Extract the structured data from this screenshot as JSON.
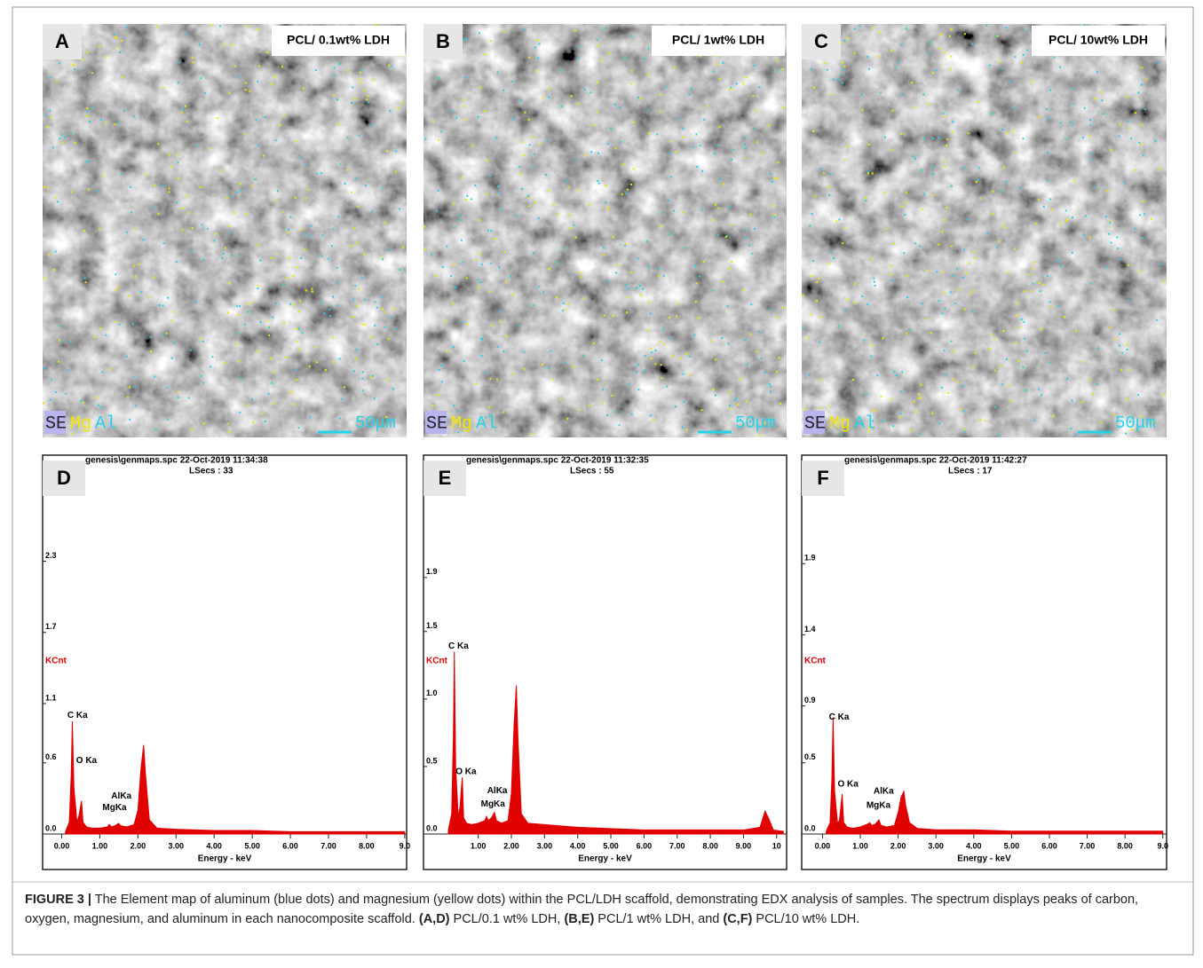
{
  "panels": [
    {
      "letter": "A",
      "label": "PCL/ 0.1wt% LDH",
      "legend": [
        "SE",
        "Mg",
        "Al"
      ],
      "scale": "50μm"
    },
    {
      "letter": "B",
      "label": "PCL/ 1wt% LDH",
      "legend": [
        "SE",
        "Mg",
        "Al"
      ],
      "scale": "50μm"
    },
    {
      "letter": "C",
      "label": "PCL/ 10wt% LDH",
      "legend": [
        "SE",
        "Mg",
        "Al"
      ],
      "scale": "50μm"
    }
  ],
  "chart_data": [
    {
      "type": "area",
      "letter": "D",
      "header": "genesis\\genmaps.spc  22-Oct-2019 11:34:38",
      "subheader": "LSecs : 33",
      "ylabel": "KCnt",
      "xlabel": "Energy - keV",
      "color": "#e00000",
      "xlim": [
        -0.5,
        9.05
      ],
      "ylim": [
        0,
        2.88
      ],
      "xticks": [
        {
          "value": 0,
          "label": "0.00"
        },
        {
          "value": 1,
          "label": "1.00"
        },
        {
          "value": 2,
          "label": "2.00"
        },
        {
          "value": 3,
          "label": "3.00"
        },
        {
          "value": 4,
          "label": "4.00"
        },
        {
          "value": 5,
          "label": "5.00"
        },
        {
          "value": 6,
          "label": "6.00"
        },
        {
          "value": 7,
          "label": "7.00"
        },
        {
          "value": 8,
          "label": "8.00"
        },
        {
          "value": 9,
          "label": "9.0"
        }
      ],
      "yticks": [
        {
          "value": 0,
          "label": "0.0"
        },
        0.6,
        1.1,
        1.7,
        2.3
      ],
      "x": [
        0.1,
        0.2,
        0.25,
        0.28,
        0.32,
        0.4,
        0.45,
        0.52,
        0.56,
        0.65,
        0.8,
        1.0,
        1.2,
        1.25,
        1.3,
        1.4,
        1.49,
        1.55,
        1.7,
        1.9,
        2.0,
        2.08,
        2.15,
        2.2,
        2.3,
        2.5,
        3.0,
        4.0,
        5.0,
        6.0,
        7.0,
        8.0,
        9.0
      ],
      "values": [
        0.02,
        0.1,
        0.5,
        0.95,
        0.4,
        0.1,
        0.15,
        0.28,
        0.1,
        0.06,
        0.05,
        0.05,
        0.06,
        0.08,
        0.06,
        0.07,
        0.09,
        0.07,
        0.06,
        0.08,
        0.2,
        0.55,
        0.75,
        0.5,
        0.12,
        0.05,
        0.04,
        0.03,
        0.03,
        0.02,
        0.02,
        0.02,
        0.02
      ],
      "annotations": [
        {
          "text": "C Ka",
          "x": 0.15,
          "y": 1.0
        },
        {
          "text": "O Ka",
          "x": 0.38,
          "y": 0.62
        },
        {
          "text": "AlKa",
          "x": 1.3,
          "y": 0.32
        },
        {
          "text": "MgKa",
          "x": 1.07,
          "y": 0.22
        }
      ]
    },
    {
      "type": "area",
      "letter": "E",
      "header": "genesis\\genmaps.spc  22-Oct-2019 11:32:35",
      "subheader": "LSecs : 55",
      "ylabel": "KCnt",
      "xlabel": "Energy - keV",
      "color": "#e00000",
      "xlim": [
        -0.65,
        10.3
      ],
      "ylim": [
        0,
        2.53
      ],
      "xticks": [
        {
          "value": 1,
          "label": "1.00"
        },
        {
          "value": 2,
          "label": "2.00"
        },
        {
          "value": 3,
          "label": "3.00"
        },
        {
          "value": 4,
          "label": "4.00"
        },
        {
          "value": 5,
          "label": "5.00"
        },
        {
          "value": 6,
          "label": "6.00"
        },
        {
          "value": 7,
          "label": "7.00"
        },
        {
          "value": 8,
          "label": "8.00"
        },
        {
          "value": 9,
          "label": "9.00"
        },
        10
      ],
      "yticks": [
        {
          "value": 0,
          "label": "0.0"
        },
        0.5,
        {
          "value": 1,
          "label": "1.0"
        },
        1.5,
        1.9
      ],
      "x": [
        0.1,
        0.2,
        0.25,
        0.28,
        0.32,
        0.4,
        0.45,
        0.52,
        0.56,
        0.65,
        0.8,
        1.0,
        1.2,
        1.25,
        1.3,
        1.4,
        1.49,
        1.55,
        1.7,
        1.9,
        2.0,
        2.08,
        2.15,
        2.2,
        2.3,
        2.5,
        3.0,
        4.0,
        5.0,
        6.0,
        7.0,
        8.0,
        9.0,
        9.5,
        9.65,
        9.75,
        9.9,
        10.2
      ],
      "values": [
        0.03,
        0.15,
        0.7,
        1.35,
        0.5,
        0.12,
        0.2,
        0.42,
        0.12,
        0.08,
        0.07,
        0.08,
        0.1,
        0.13,
        0.1,
        0.12,
        0.16,
        0.1,
        0.08,
        0.1,
        0.3,
        0.8,
        1.1,
        0.7,
        0.15,
        0.08,
        0.07,
        0.05,
        0.04,
        0.03,
        0.03,
        0.03,
        0.03,
        0.05,
        0.17,
        0.12,
        0.03,
        0.02
      ],
      "annotations": [
        {
          "text": "C Ka",
          "x": 0.1,
          "y": 1.39
        },
        {
          "text": "O Ka",
          "x": 0.32,
          "y": 0.46
        },
        {
          "text": "AlKa",
          "x": 1.27,
          "y": 0.32
        },
        {
          "text": "MgKa",
          "x": 1.08,
          "y": 0.22
        }
      ]
    },
    {
      "type": "area",
      "letter": "F",
      "header": "genesis\\genmaps.spc  22-Oct-2019 11:42:27",
      "subheader": "LSecs : 17",
      "ylabel": "KCnt",
      "xlabel": "Energy - keV",
      "color": "#e00000",
      "xlim": [
        -0.55,
        9.1
      ],
      "ylim": [
        0,
        2.4
      ],
      "xticks": [
        {
          "value": 0,
          "label": "0.00"
        },
        {
          "value": 1,
          "label": "1.00"
        },
        {
          "value": 2,
          "label": "2.00"
        },
        {
          "value": 3,
          "label": "3.00"
        },
        {
          "value": 4,
          "label": "4.00"
        },
        {
          "value": 5,
          "label": "5.00"
        },
        {
          "value": 6,
          "label": "6.00"
        },
        {
          "value": 7,
          "label": "7.00"
        },
        {
          "value": 8,
          "label": "8.00"
        },
        {
          "value": 9,
          "label": "9.0"
        }
      ],
      "yticks": [
        {
          "value": 0,
          "label": "0.0"
        },
        0.5,
        0.9,
        1.4,
        1.9
      ],
      "x": [
        0.1,
        0.2,
        0.25,
        0.28,
        0.32,
        0.4,
        0.45,
        0.52,
        0.56,
        0.65,
        0.8,
        1.0,
        1.2,
        1.25,
        1.3,
        1.4,
        1.49,
        1.55,
        1.7,
        1.9,
        2.0,
        2.08,
        2.15,
        2.2,
        2.3,
        2.5,
        3.0,
        4.0,
        5.0,
        6.0,
        7.0,
        8.0,
        9.0
      ],
      "values": [
        0.02,
        0.08,
        0.4,
        0.82,
        0.3,
        0.07,
        0.1,
        0.28,
        0.08,
        0.05,
        0.04,
        0.05,
        0.07,
        0.08,
        0.06,
        0.07,
        0.1,
        0.06,
        0.05,
        0.06,
        0.15,
        0.26,
        0.3,
        0.2,
        0.08,
        0.04,
        0.03,
        0.03,
        0.02,
        0.02,
        0.02,
        0.02,
        0.02
      ],
      "annotations": [
        {
          "text": "C Ka",
          "x": 0.17,
          "y": 0.82
        },
        {
          "text": "O Ka",
          "x": 0.4,
          "y": 0.35
        },
        {
          "text": "AlKa",
          "x": 1.35,
          "y": 0.3
        },
        {
          "text": "MgKa",
          "x": 1.16,
          "y": 0.2
        }
      ]
    }
  ],
  "caption": {
    "segments": [
      "FIGURE 3 |",
      " The Element map of aluminum (blue dots) and magnesium (yellow dots) within the PCL/LDH scaffold, demonstrating EDX analysis of samples. The spectrum displays peaks of carbon, oxygen, magnesium, and aluminum in each nanocomposite scaffold. ",
      "(A,D)",
      " PCL/0.1 wt% LDH, ",
      "(B,E)",
      " PCL/1 wt% LDH, and ",
      "(C,F)",
      " PCL/10 wt% LDH."
    ]
  }
}
